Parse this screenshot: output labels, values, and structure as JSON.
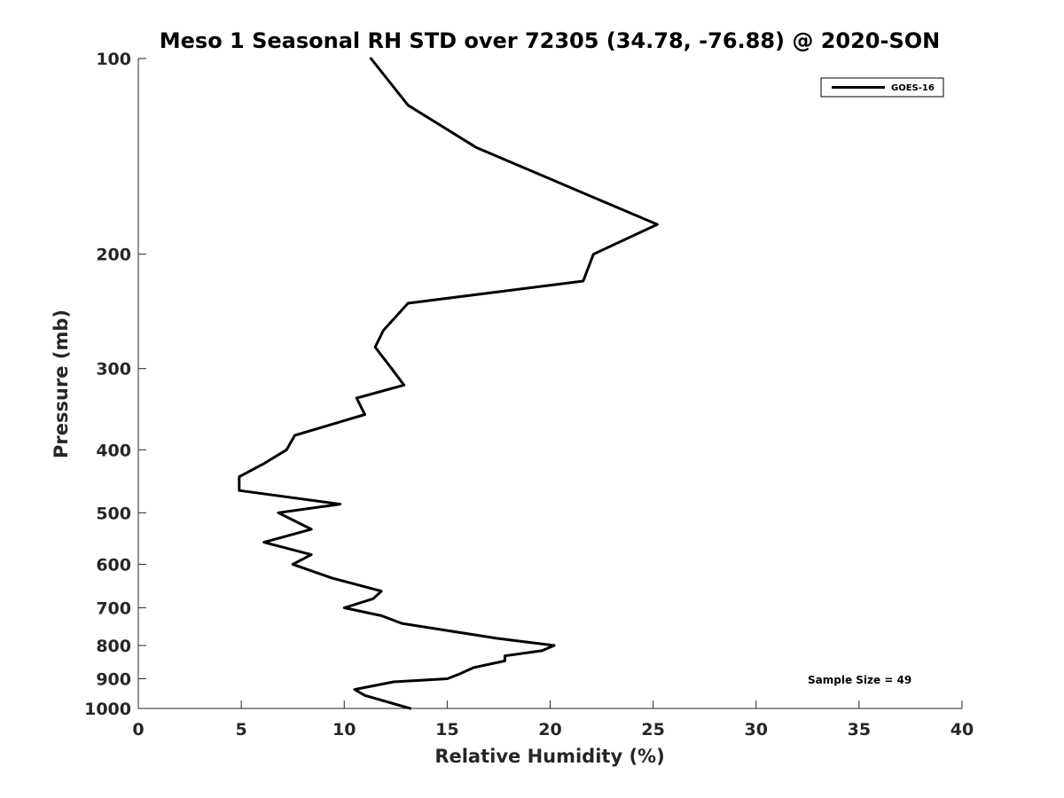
{
  "chart_data": {
    "type": "line",
    "title": "Meso 1 Seasonal RH STD over 72305 (34.78, -76.88) @ 2020-SON",
    "xlabel": "Relative Humidity (%)",
    "ylabel": "Pressure (mb)",
    "xlim": [
      0,
      40
    ],
    "ylim": [
      100,
      1000
    ],
    "yscale": "log",
    "y_reversed": true,
    "xticks": [
      0,
      5,
      10,
      15,
      20,
      25,
      30,
      35,
      40
    ],
    "yticks": [
      100,
      200,
      300,
      400,
      500,
      600,
      700,
      800,
      900,
      1000
    ],
    "legend": {
      "position": "top-right",
      "entries": [
        "GOES-16"
      ]
    },
    "annotations": [
      {
        "text": "Sample Size = 49",
        "position": "bottom-right"
      }
    ],
    "series": [
      {
        "name": "GOES-16",
        "color": "#000000",
        "x": [
          11.3,
          13.1,
          16.4,
          21.8,
          25.2,
          22.1,
          21.6,
          13.1,
          11.9,
          11.5,
          12.3,
          12.9,
          10.6,
          11.0,
          7.6,
          7.2,
          6.1,
          4.9,
          4.9,
          9.8,
          6.8,
          8.4,
          6.1,
          8.4,
          7.5,
          9.4,
          11.8,
          11.4,
          10.0,
          11.8,
          12.8,
          17.4,
          20.2,
          19.6,
          17.8,
          17.8,
          16.3,
          15.6,
          15.0,
          12.4,
          10.5,
          11.0,
          13.2
        ],
        "y": [
          100,
          118,
          137,
          162,
          180,
          200,
          220,
          238,
          262,
          278,
          300,
          318,
          333,
          353,
          380,
          400,
          420,
          440,
          462,
          485,
          500,
          530,
          555,
          580,
          600,
          630,
          660,
          678,
          700,
          720,
          740,
          780,
          800,
          815,
          830,
          845,
          865,
          885,
          900,
          910,
          935,
          955,
          1000
        ]
      }
    ]
  }
}
